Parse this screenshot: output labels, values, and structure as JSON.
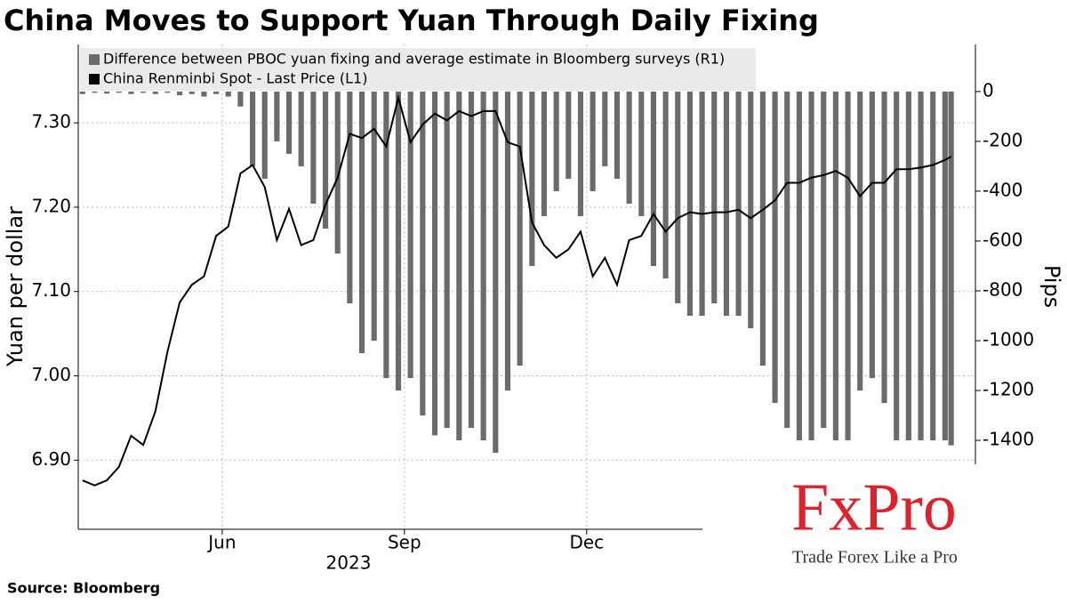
{
  "chart_data": {
    "type": "combo",
    "title": "China Moves to Support Yuan Through Daily Fixing",
    "ylabel": "Yuan per dollar",
    "y2label": "Pips",
    "x_period_label": "2023",
    "source": "Source:  Bloomberg",
    "legend": "top-left",
    "grid": true,
    "xlim": [
      2.63,
      17.4
    ],
    "xticks": [
      {
        "value": 5,
        "label": "Jun"
      },
      {
        "value": 8,
        "label": "Sep"
      },
      {
        "value": 11,
        "label": "Dec"
      }
    ],
    "ylim": [
      6.818,
      7.393
    ],
    "yticks": [
      {
        "value": 6.9,
        "label": "6.90"
      },
      {
        "value": 7.0,
        "label": "7.00"
      },
      {
        "value": 7.1,
        "label": "7.10"
      },
      {
        "value": 7.2,
        "label": "7.20"
      },
      {
        "value": 7.3,
        "label": "7.30"
      }
    ],
    "y2lim": [
      -1757,
      189
    ],
    "y2ticks": [
      -1400,
      -1200,
      -1000,
      -800,
      -600,
      -400,
      -200,
      0
    ],
    "x": [
      2.7,
      2.9,
      3.1,
      3.3,
      3.5,
      3.7,
      3.9,
      4.1,
      4.3,
      4.5,
      4.7,
      4.9,
      5.1,
      5.3,
      5.5,
      5.7,
      5.9,
      6.1,
      6.3,
      6.5,
      6.7,
      6.9,
      7.1,
      7.3,
      7.5,
      7.7,
      7.9,
      8.1,
      8.3,
      8.5,
      8.7,
      8.9,
      9.1,
      9.3,
      9.5,
      9.7,
      9.9,
      10.1,
      10.3,
      10.5,
      10.7,
      10.9,
      11.1,
      11.3,
      11.5,
      11.7,
      11.9,
      12.1,
      12.3,
      12.5,
      12.7,
      12.9,
      13.1,
      13.3,
      13.5,
      13.7,
      13.9,
      14.1,
      14.3,
      14.5,
      14.7,
      14.9,
      15.1,
      15.3,
      15.5,
      15.7,
      15.9,
      16.1,
      16.3,
      16.5,
      16.7,
      16.9,
      17.0
    ],
    "series": [
      {
        "name": "Difference between PBOC yuan fixing and average estimate in Bloomberg surveys (R1)",
        "type": "bar",
        "axis": "y2",
        "color": "#6b6b6b",
        "values": [
          -10,
          -5,
          -8,
          -5,
          -10,
          -5,
          -10,
          -5,
          -15,
          -10,
          -20,
          -10,
          -20,
          -60,
          -300,
          -350,
          -200,
          -250,
          -300,
          -450,
          -550,
          -650,
          -850,
          -1050,
          -1000,
          -1150,
          -1200,
          -1150,
          -1300,
          -1380,
          -1350,
          -1400,
          -1350,
          -1400,
          -1450,
          -1200,
          -1100,
          -700,
          -500,
          -400,
          -350,
          -500,
          -400,
          -300,
          -350,
          -450,
          -500,
          -700,
          -750,
          -850,
          -900,
          -900,
          -850,
          -900,
          -900,
          -950,
          -1100,
          -1250,
          -1350,
          -1400,
          -1400,
          -1350,
          -1400,
          -1400,
          -1200,
          -1150,
          -1250,
          -1400,
          -1400,
          -1400,
          -1400,
          -1400,
          -1420
        ]
      },
      {
        "name": "China Renminbi Spot - Last Price (L1)",
        "type": "line",
        "color": "#000000",
        "values": [
          6.876,
          6.87,
          6.876,
          6.892,
          6.929,
          6.918,
          6.958,
          7.029,
          7.087,
          7.108,
          7.118,
          7.166,
          7.177,
          7.24,
          7.25,
          7.224,
          7.161,
          7.198,
          7.155,
          7.161,
          7.203,
          7.235,
          7.287,
          7.282,
          7.293,
          7.272,
          7.33,
          7.277,
          7.298,
          7.311,
          7.303,
          7.314,
          7.308,
          7.314,
          7.314,
          7.277,
          7.272,
          7.182,
          7.155,
          7.14,
          7.15,
          7.171,
          7.118,
          7.14,
          7.108,
          7.161,
          7.166,
          7.192,
          7.171,
          7.187,
          7.194,
          7.192,
          7.194,
          7.194,
          7.197,
          7.187,
          7.197,
          7.208,
          7.229,
          7.229,
          7.235,
          7.238,
          7.243,
          7.235,
          7.213,
          7.229,
          7.229,
          7.245,
          7.245,
          7.247,
          7.25,
          7.256,
          7.26
        ]
      }
    ]
  },
  "watermark": {
    "brand": "FxPro",
    "tagline": "Trade Forex Like a Pro"
  }
}
